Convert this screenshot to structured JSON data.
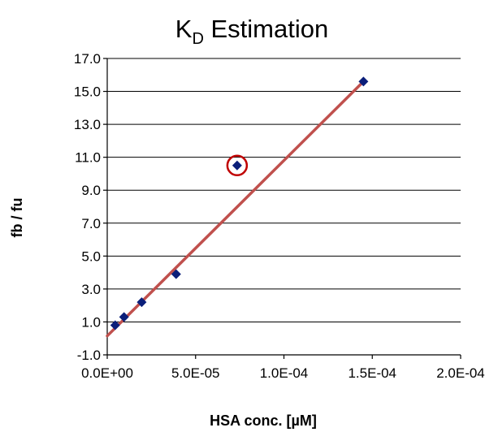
{
  "chart_data": {
    "type": "scatter",
    "title": {
      "main": "K",
      "sub": "D",
      "rest": " Estimation"
    },
    "xlabel": "HSA conc. [µM]",
    "ylabel": "fb / fu",
    "xlim": [
      0,
      0.0002
    ],
    "ylim": [
      -1.0,
      17.0
    ],
    "x_ticks": [
      0,
      5e-05,
      0.0001,
      0.00015,
      0.0002
    ],
    "x_tick_labels": [
      "0.0E+00",
      "5.0E-05",
      "1.0E-04",
      "1.5E-04",
      "2.0E-04"
    ],
    "y_ticks": [
      -1.0,
      1.0,
      3.0,
      5.0,
      7.0,
      9.0,
      11.0,
      13.0,
      15.0,
      17.0
    ],
    "y_tick_labels": [
      "-1.0",
      "1.0",
      "3.0",
      "5.0",
      "7.0",
      "9.0",
      "11.0",
      "13.0",
      "15.0",
      "17.0"
    ],
    "grid": "horizontal",
    "points": [
      {
        "x": 4.5e-06,
        "y": 0.8
      },
      {
        "x": 9.5e-06,
        "y": 1.3
      },
      {
        "x": 1.95e-05,
        "y": 2.2
      },
      {
        "x": 3.9e-05,
        "y": 3.9
      },
      {
        "x": 7.35e-05,
        "y": 10.5
      },
      {
        "x": 0.000145,
        "y": 15.6
      }
    ],
    "trendline": {
      "x": [
        0,
        0.000145
      ],
      "y": [
        0.15,
        15.6
      ]
    },
    "highlighted_point_index": 4,
    "colors": {
      "marker": "#0b1f7a",
      "trendline": "#c0504d",
      "highlight_circle": "#c00000"
    }
  }
}
